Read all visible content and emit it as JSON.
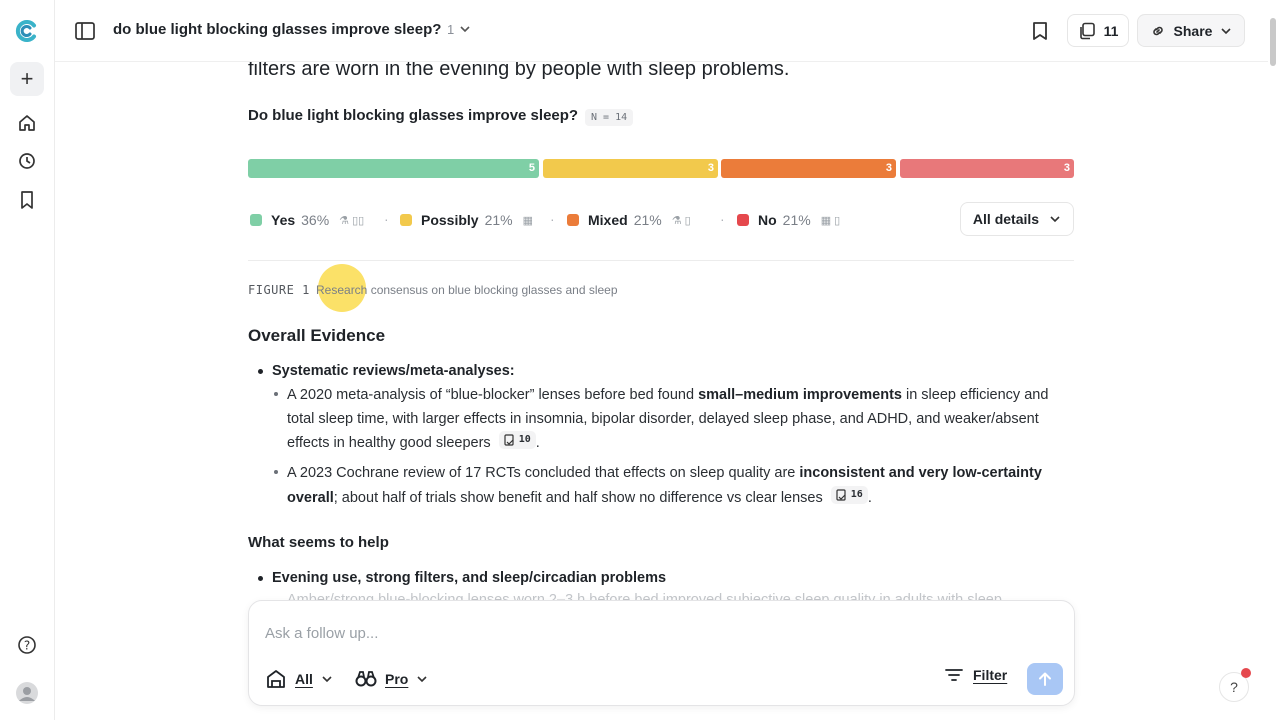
{
  "header": {
    "title": "do blue light blocking glasses improve sleep?",
    "thread_count": "1",
    "sources_count": "11",
    "share_label": "Share"
  },
  "rail": {
    "icons": [
      "app-logo",
      "new-thread",
      "home",
      "history",
      "bookmarks",
      "help",
      "avatar"
    ]
  },
  "content": {
    "lead_text": "filters are worn in the evening by people with sleep problems.",
    "question": "Do blue light blocking glasses improve sleep?",
    "n_badge": "N = 14",
    "bars": [
      {
        "label": "Yes",
        "count": "5",
        "color": "#7fcfa6"
      },
      {
        "label": "Possibly",
        "count": "3",
        "color": "#f2c94c"
      },
      {
        "label": "Mixed",
        "count": "3",
        "color": "#eb7c3a"
      },
      {
        "label": "No",
        "count": "3",
        "color": "#e8787a"
      }
    ],
    "legend": [
      {
        "label": "Yes",
        "pct": "36%",
        "color": "#7fcfa6",
        "icons": "⚗ ▯▯"
      },
      {
        "label": "Possibly",
        "pct": "21%",
        "color": "#f2c94c",
        "icons": "▦"
      },
      {
        "label": "Mixed",
        "pct": "21%",
        "color": "#eb7c3a",
        "icons": "⚗ ▯"
      },
      {
        "label": "No",
        "pct": "21%",
        "color": "#e5484d",
        "icons": "▦ ▯"
      }
    ],
    "all_details": "All details",
    "figure_label": "FIGURE 1",
    "figure_caption": "Research consensus on blue blocking glasses and sleep",
    "overall_heading": "Overall Evidence",
    "sys_heading": "Systematic reviews/meta-analyses:",
    "p1": {
      "pre": "A 2020 meta-analysis of “blue-blocker” lenses before bed found ",
      "bold": "small–medium improvements",
      "post": " in sleep efficiency and total sleep time, with larger effects in insomnia, bipolar disorder, delayed sleep phase, and ADHD, and weaker/absent effects in healthy good sleepers",
      "cite": "10",
      "end": "."
    },
    "p2": {
      "pre": "A 2023 Cochrane review of 17 RCTs concluded that effects on sleep quality are ",
      "bold": "inconsistent and very low-certainty overall",
      "post": "; about half of trials show benefit and half show no difference vs clear lenses",
      "cite": "16",
      "end": "."
    },
    "help_heading": "What seems to help",
    "help_sub": "Evening use, strong filters, and sleep/circadian problems",
    "faded_line": "Amber/strong blue-blocking lenses worn 2–3 h before bed improved subjective sleep quality in adults with sleep"
  },
  "composer": {
    "placeholder": "Ask a follow up...",
    "mode_all": "All",
    "mode_pro": "Pro",
    "filter_label": "Filter"
  },
  "help_fab": "?"
}
